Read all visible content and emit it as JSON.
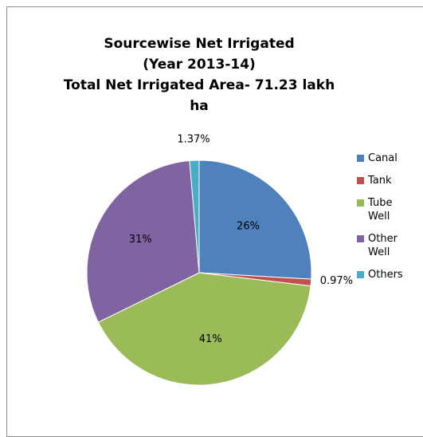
{
  "chart_data": {
    "type": "pie",
    "title": "Sourcewise Net Irrigated\n(Year 2013-14)",
    "subtitle": "Total Net Irrigated Area- 71.23 lakh\nha",
    "categories": [
      "Canal",
      "Tank",
      "Tube Well",
      "Other Well",
      "Others"
    ],
    "values": [
      26,
      0.97,
      41,
      31,
      1.37
    ],
    "value_labels": [
      "26%",
      "0.97%",
      "41%",
      "31%",
      "1.37%"
    ],
    "colors": [
      "#4f81bd",
      "#c0504d",
      "#9bbb59",
      "#8064a2",
      "#4bacc6"
    ],
    "legend": "right"
  }
}
